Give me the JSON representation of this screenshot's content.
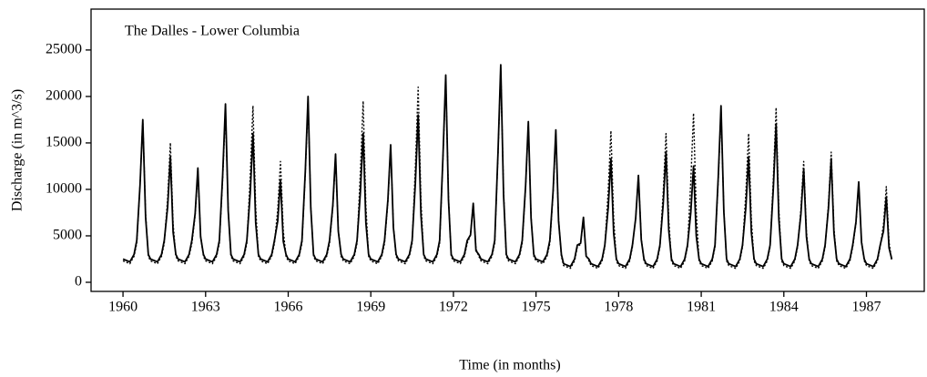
{
  "chart_data": {
    "type": "line",
    "title": "The Dalles - Lower Columbia",
    "xlabel": "Time (in months)",
    "ylabel": "Discharge (in m^3/s)",
    "xlim": [
      1958.84,
      1989.1
    ],
    "ylim": [
      -980,
      29400
    ],
    "xticks": [
      1960,
      1963,
      1966,
      1969,
      1972,
      1975,
      1978,
      1981,
      1984,
      1987
    ],
    "yticks": [
      0,
      5000,
      10000,
      15000,
      20000,
      25000
    ],
    "grid": false,
    "x": [
      1960,
      1960.25,
      1960.4,
      1960.5,
      1960.62,
      1960.72,
      1960.82,
      1960.92,
      1961,
      1961.25,
      1961.4,
      1961.5,
      1961.62,
      1961.72,
      1961.82,
      1961.92,
      1962,
      1962.25,
      1962.4,
      1962.5,
      1962.62,
      1962.72,
      1962.82,
      1962.92,
      1963,
      1963.25,
      1963.4,
      1963.5,
      1963.62,
      1963.72,
      1963.82,
      1963.92,
      1964,
      1964.25,
      1964.4,
      1964.5,
      1964.62,
      1964.72,
      1964.82,
      1964.92,
      1965,
      1965.25,
      1965.4,
      1965.5,
      1965.62,
      1965.72,
      1965.82,
      1965.92,
      1966,
      1966.25,
      1966.4,
      1966.5,
      1966.62,
      1966.72,
      1966.82,
      1966.92,
      1967,
      1967.25,
      1967.4,
      1967.5,
      1967.62,
      1967.72,
      1967.82,
      1967.92,
      1968,
      1968.25,
      1968.4,
      1968.5,
      1968.62,
      1968.72,
      1968.82,
      1968.92,
      1969,
      1969.25,
      1969.4,
      1969.5,
      1969.62,
      1969.72,
      1969.82,
      1969.92,
      1970,
      1970.25,
      1970.4,
      1970.5,
      1970.62,
      1970.72,
      1970.82,
      1970.92,
      1971,
      1971.25,
      1971.4,
      1971.5,
      1971.62,
      1971.72,
      1971.82,
      1971.92,
      1972,
      1972.25,
      1972.4,
      1972.5,
      1972.62,
      1972.72,
      1972.82,
      1972.92,
      1973,
      1973.25,
      1973.4,
      1973.5,
      1973.62,
      1973.72,
      1973.82,
      1973.92,
      1974,
      1974.25,
      1974.4,
      1974.5,
      1974.62,
      1974.72,
      1974.82,
      1974.92,
      1975,
      1975.25,
      1975.4,
      1975.5,
      1975.62,
      1975.72,
      1975.82,
      1975.92,
      1976,
      1976.25,
      1976.4,
      1976.5,
      1976.62,
      1976.72,
      1976.82,
      1976.92,
      1977,
      1977.25,
      1977.4,
      1977.5,
      1977.62,
      1977.72,
      1977.82,
      1977.92,
      1978,
      1978.25,
      1978.4,
      1978.5,
      1978.62,
      1978.72,
      1978.82,
      1978.92,
      1979,
      1979.25,
      1979.4,
      1979.5,
      1979.62,
      1979.72,
      1979.82,
      1979.92,
      1980,
      1980.25,
      1980.4,
      1980.5,
      1980.62,
      1980.72,
      1980.82,
      1980.92,
      1981,
      1981.25,
      1981.4,
      1981.5,
      1981.62,
      1981.72,
      1981.82,
      1981.92,
      1982,
      1982.25,
      1982.4,
      1982.5,
      1982.62,
      1982.72,
      1982.82,
      1982.92,
      1983,
      1983.25,
      1983.4,
      1983.5,
      1983.62,
      1983.72,
      1983.82,
      1983.92,
      1984,
      1984.25,
      1984.4,
      1984.5,
      1984.62,
      1984.72,
      1984.82,
      1984.92,
      1985,
      1985.25,
      1985.4,
      1985.5,
      1985.62,
      1985.72,
      1985.82,
      1985.92,
      1986,
      1986.25,
      1986.4,
      1986.5,
      1986.62,
      1986.72,
      1986.82,
      1986.92,
      1987,
      1987.25,
      1987.4,
      1987.5,
      1987.62,
      1987.72,
      1987.82,
      1987.92
    ],
    "series": [
      {
        "color": "#000000",
        "linestyle": "solid",
        "values": [
          2500,
          2200,
          3000,
          4500,
          10500,
          17500,
          7000,
          3000,
          2500,
          2200,
          3000,
          4500,
          8100,
          13500,
          5400,
          3000,
          2500,
          2200,
          3000,
          4500,
          7400,
          12300,
          4900,
          3000,
          2500,
          2200,
          3000,
          4500,
          11500,
          19200,
          7700,
          3000,
          2500,
          2200,
          3000,
          4500,
          9600,
          16000,
          6400,
          3000,
          2500,
          2200,
          3000,
          4500,
          6600,
          11000,
          4400,
          3000,
          2500,
          2200,
          3000,
          4500,
          12000,
          20000,
          8000,
          3000,
          2500,
          2200,
          3000,
          4500,
          8300,
          13800,
          5500,
          3000,
          2500,
          2200,
          3000,
          4500,
          9600,
          16000,
          6400,
          3000,
          2500,
          2200,
          3000,
          4500,
          8900,
          14800,
          5900,
          3000,
          2500,
          2200,
          3000,
          4500,
          10800,
          18000,
          7200,
          3000,
          2500,
          2200,
          3000,
          4500,
          13400,
          22300,
          8900,
          3000,
          2500,
          2200,
          3000,
          4500,
          5100,
          8500,
          3400,
          3000,
          2500,
          2200,
          3000,
          4500,
          14000,
          23400,
          9400,
          3000,
          2500,
          2200,
          3000,
          4500,
          10400,
          17300,
          6900,
          3000,
          2500,
          2200,
          3000,
          4500,
          9800,
          16400,
          6600,
          3000,
          2000,
          1700,
          2500,
          4000,
          4200,
          7000,
          2800,
          2500,
          2000,
          1700,
          2500,
          4000,
          8000,
          13300,
          5300,
          2500,
          2000,
          1700,
          2500,
          4000,
          6900,
          11500,
          4600,
          2500,
          2000,
          1700,
          2500,
          4000,
          8400,
          14000,
          5600,
          2500,
          2000,
          1700,
          2500,
          4000,
          7500,
          12500,
          5000,
          2500,
          2000,
          1700,
          2500,
          4000,
          11400,
          19000,
          7600,
          2500,
          2000,
          1700,
          2500,
          4000,
          8100,
          13500,
          5400,
          2500,
          2000,
          1700,
          2500,
          4000,
          10200,
          17000,
          6800,
          2500,
          2000,
          1700,
          2500,
          4000,
          7300,
          12200,
          4900,
          2500,
          2000,
          1700,
          2500,
          4000,
          8000,
          13300,
          5300,
          2500,
          2000,
          1700,
          2500,
          4000,
          6500,
          10800,
          4300,
          2500,
          2000,
          1700,
          2500,
          4000,
          5500,
          9200,
          3700,
          2500
        ]
      },
      {
        "color": "#000000",
        "linestyle": "dotted",
        "values": [
          2300,
          2000,
          2800,
          4200,
          10500,
          17500,
          7400,
          2800,
          2300,
          2000,
          2800,
          4200,
          9000,
          15000,
          6300,
          2800,
          2300,
          2000,
          2800,
          4200,
          7200,
          12000,
          5000,
          2800,
          2300,
          2000,
          2800,
          4200,
          11100,
          18500,
          7800,
          2800,
          2300,
          2000,
          2800,
          4200,
          11400,
          19000,
          8000,
          2800,
          2300,
          2000,
          2800,
          4200,
          7800,
          13000,
          5500,
          2800,
          2300,
          2000,
          2800,
          4200,
          11700,
          19500,
          8200,
          2800,
          2300,
          2000,
          2800,
          4200,
          8100,
          13500,
          5700,
          2800,
          2300,
          2000,
          2800,
          4200,
          11700,
          19500,
          8200,
          2800,
          2300,
          2000,
          2800,
          4200,
          8700,
          14500,
          6100,
          2800,
          2300,
          2000,
          2800,
          4200,
          12600,
          21000,
          8800,
          2800,
          2300,
          2000,
          2800,
          4200,
          13200,
          22000,
          9200,
          2800,
          2300,
          2000,
          2800,
          4200,
          5100,
          8500,
          3600,
          2800,
          2300,
          2000,
          2800,
          4200,
          13800,
          23000,
          9700,
          2800,
          2300,
          2000,
          2800,
          4200,
          10200,
          17000,
          7100,
          2800,
          2300,
          2000,
          2800,
          4200,
          9600,
          16000,
          6700,
          2800,
          1800,
          1500,
          2300,
          3800,
          4100,
          6800,
          2900,
          2300,
          1800,
          1500,
          2300,
          3800,
          9800,
          16300,
          6800,
          2300,
          1800,
          1500,
          2300,
          3800,
          6900,
          11500,
          4800,
          2300,
          1800,
          1500,
          2300,
          3800,
          9600,
          16000,
          6700,
          2300,
          1800,
          1500,
          2300,
          3800,
          10900,
          18200,
          7600,
          2300,
          1800,
          1500,
          2300,
          3800,
          11100,
          18500,
          7800,
          2300,
          1800,
          1500,
          2300,
          3800,
          9600,
          16000,
          6700,
          2300,
          1800,
          1500,
          2300,
          3800,
          11300,
          18800,
          7900,
          2300,
          1800,
          1500,
          2300,
          3800,
          7800,
          13000,
          5500,
          2300,
          1800,
          1500,
          2300,
          3800,
          8400,
          14000,
          5900,
          2300,
          1800,
          1500,
          2300,
          3800,
          6300,
          10500,
          4400,
          2300,
          1800,
          1500,
          2300,
          3800,
          6200,
          10300,
          4300,
          2300
        ]
      }
    ]
  }
}
